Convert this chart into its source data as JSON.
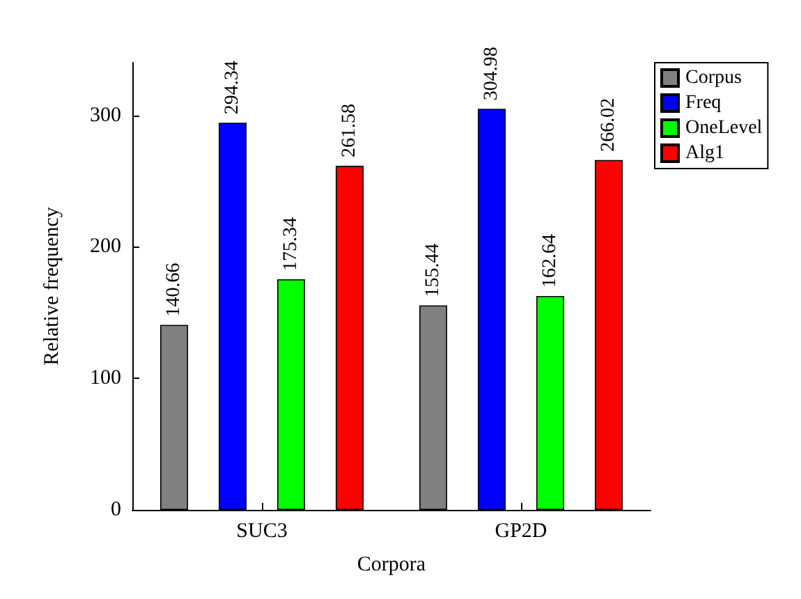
{
  "chart_data": {
    "type": "bar",
    "xlabel": "Corpora",
    "ylabel": "Relative frequency",
    "categories": [
      "SUC3",
      "GP2D"
    ],
    "series": [
      {
        "name": "Corpus",
        "color": "#808080",
        "values": [
          140.66,
          155.44
        ]
      },
      {
        "name": "Freq",
        "color": "#0000ff",
        "values": [
          294.34,
          304.98
        ]
      },
      {
        "name": "OneLevel",
        "color": "#00ff00",
        "values": [
          175.34,
          162.64
        ]
      },
      {
        "name": "Alg1",
        "color": "#ff0000",
        "values": [
          261.58,
          266.02
        ]
      }
    ],
    "ylim": [
      0,
      340
    ],
    "yticks": [
      0,
      100,
      200,
      300
    ],
    "data_labels": true,
    "legend": "top right",
    "grid": false
  }
}
